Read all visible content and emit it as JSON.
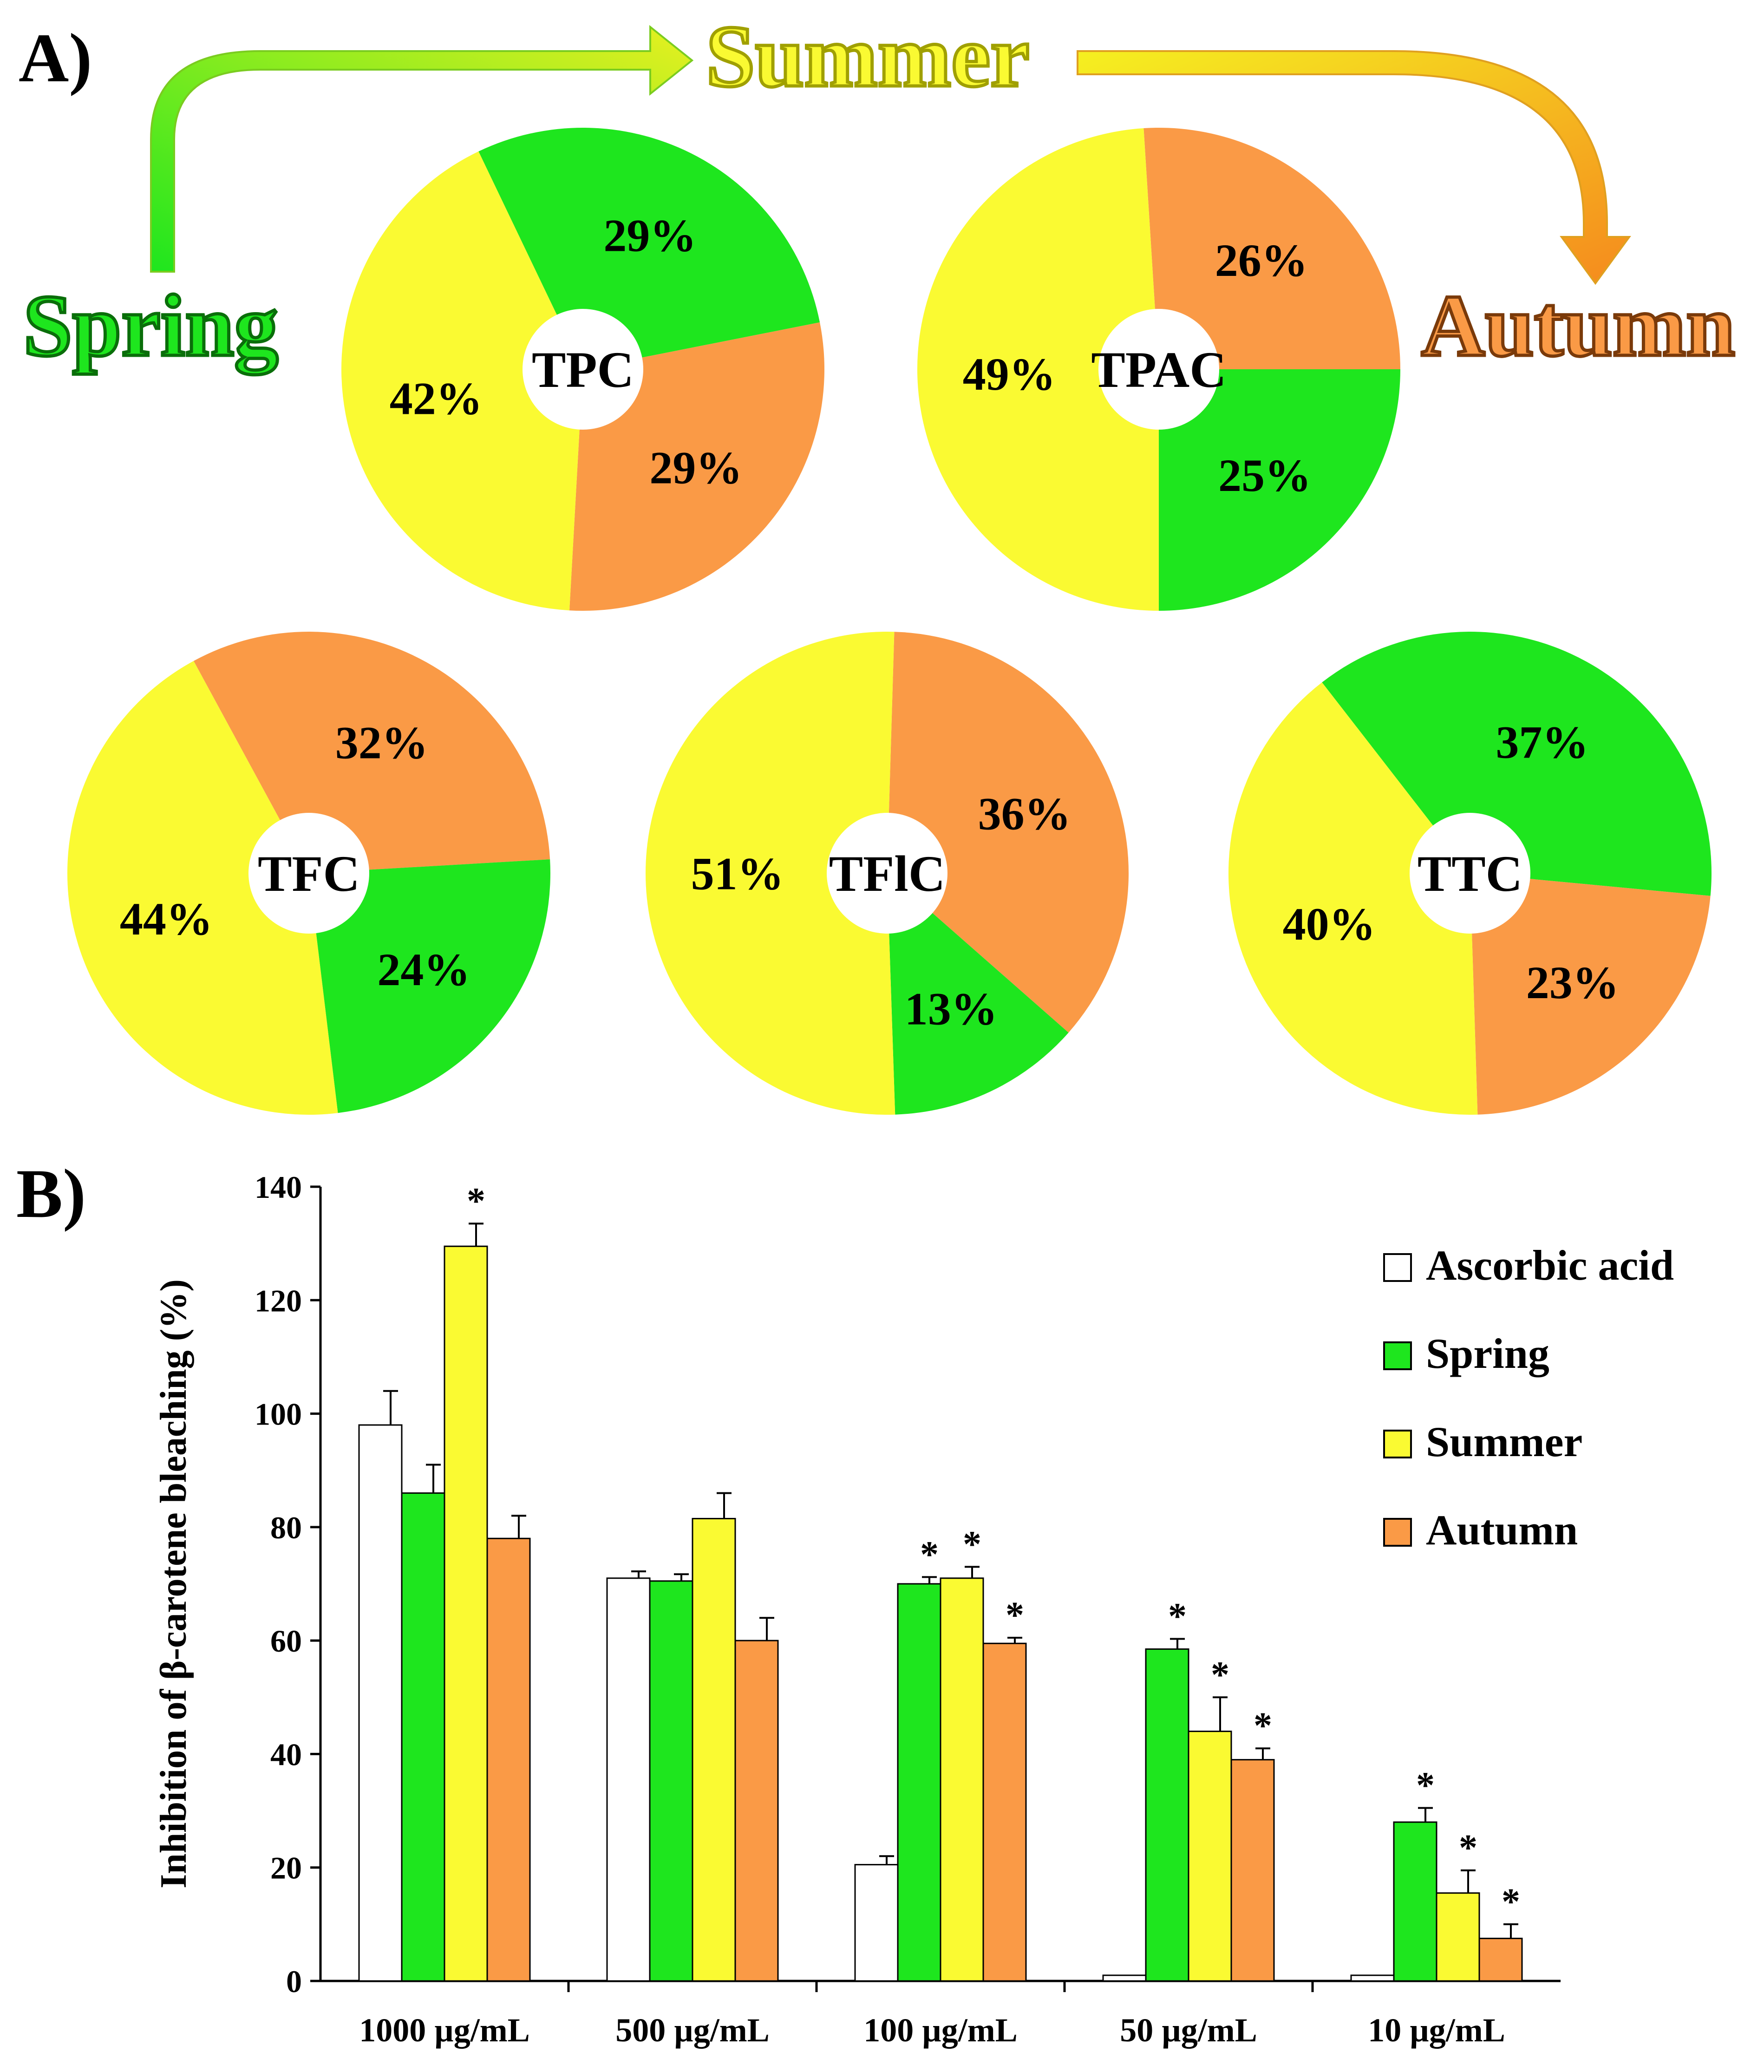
{
  "colors": {
    "spring": "#1ee61e",
    "summer": "#fafa32",
    "autumn": "#fa9a46",
    "ascorbic": "#ffffff",
    "summer_text_stroke": "#a0a000",
    "spring_text_stroke": "#0a6e0a",
    "autumn_text_stroke": "#7a3a0a"
  },
  "panelA": {
    "label": "A)",
    "seasons": {
      "spring": "Spring",
      "summer": "Summer",
      "autumn": "Autumn"
    }
  },
  "panelB": {
    "label": "B)"
  },
  "chart_data": [
    {
      "type": "pie",
      "title": "TPC",
      "slices": [
        {
          "season": "spring",
          "value": 29,
          "label": "29%"
        },
        {
          "season": "autumn",
          "value": 29,
          "label": "29%"
        },
        {
          "season": "summer",
          "value": 42,
          "label": "42%"
        }
      ]
    },
    {
      "type": "pie",
      "title": "TPAC",
      "slices": [
        {
          "season": "autumn",
          "value": 26,
          "label": "26%"
        },
        {
          "season": "spring",
          "value": 25,
          "label": "25%"
        },
        {
          "season": "summer",
          "value": 49,
          "label": "49%"
        }
      ]
    },
    {
      "type": "pie",
      "title": "TFC",
      "slices": [
        {
          "season": "autumn",
          "value": 32,
          "label": "32%"
        },
        {
          "season": "spring",
          "value": 24,
          "label": "24%"
        },
        {
          "season": "summer",
          "value": 44,
          "label": "44%"
        }
      ]
    },
    {
      "type": "pie",
      "title": "TFlC",
      "slices": [
        {
          "season": "autumn",
          "value": 36,
          "label": "36%"
        },
        {
          "season": "spring",
          "value": 13,
          "label": "13%"
        },
        {
          "season": "summer",
          "value": 51,
          "label": "51%"
        }
      ]
    },
    {
      "type": "pie",
      "title": "TTC",
      "slices": [
        {
          "season": "spring",
          "value": 37,
          "label": "37%"
        },
        {
          "season": "autumn",
          "value": 23,
          "label": "23%"
        },
        {
          "season": "summer",
          "value": 40,
          "label": "40%"
        }
      ]
    },
    {
      "type": "bar",
      "title": "",
      "xlabel": "",
      "ylabel": "Inhibition of β-carotene bleaching (%)",
      "ylim": [
        0,
        140
      ],
      "yticks": [
        0,
        20,
        40,
        60,
        80,
        100,
        120,
        140
      ],
      "categories": [
        "1000 µg/mL",
        "500 µg/mL",
        "100 µg/mL",
        "50 µg/mL",
        "10 µg/mL"
      ],
      "series": [
        {
          "name": "Ascorbic acid",
          "key": "ascorbic",
          "values": [
            98,
            71,
            20.5,
            1,
            1
          ],
          "errors": [
            6,
            1.2,
            1.5,
            0,
            0
          ],
          "significant": [
            false,
            false,
            false,
            false,
            false
          ]
        },
        {
          "name": "Spring",
          "key": "spring",
          "values": [
            86,
            70.5,
            70,
            58.5,
            28
          ],
          "errors": [
            5,
            1.2,
            1.2,
            1.8,
            2.5
          ],
          "significant": [
            false,
            false,
            true,
            true,
            true
          ]
        },
        {
          "name": "Summer",
          "key": "summer",
          "values": [
            129.5,
            81.5,
            71,
            44,
            15.5
          ],
          "errors": [
            4,
            4.5,
            2,
            6,
            4
          ],
          "significant": [
            true,
            false,
            true,
            true,
            true
          ]
        },
        {
          "name": "Autumn",
          "key": "autumn",
          "values": [
            78,
            60,
            59.5,
            39,
            7.5
          ],
          "errors": [
            4,
            4,
            1,
            2,
            2.5
          ],
          "significant": [
            false,
            false,
            true,
            true,
            true
          ]
        }
      ],
      "significance_marker": "*",
      "legend_position": "top-right"
    }
  ]
}
